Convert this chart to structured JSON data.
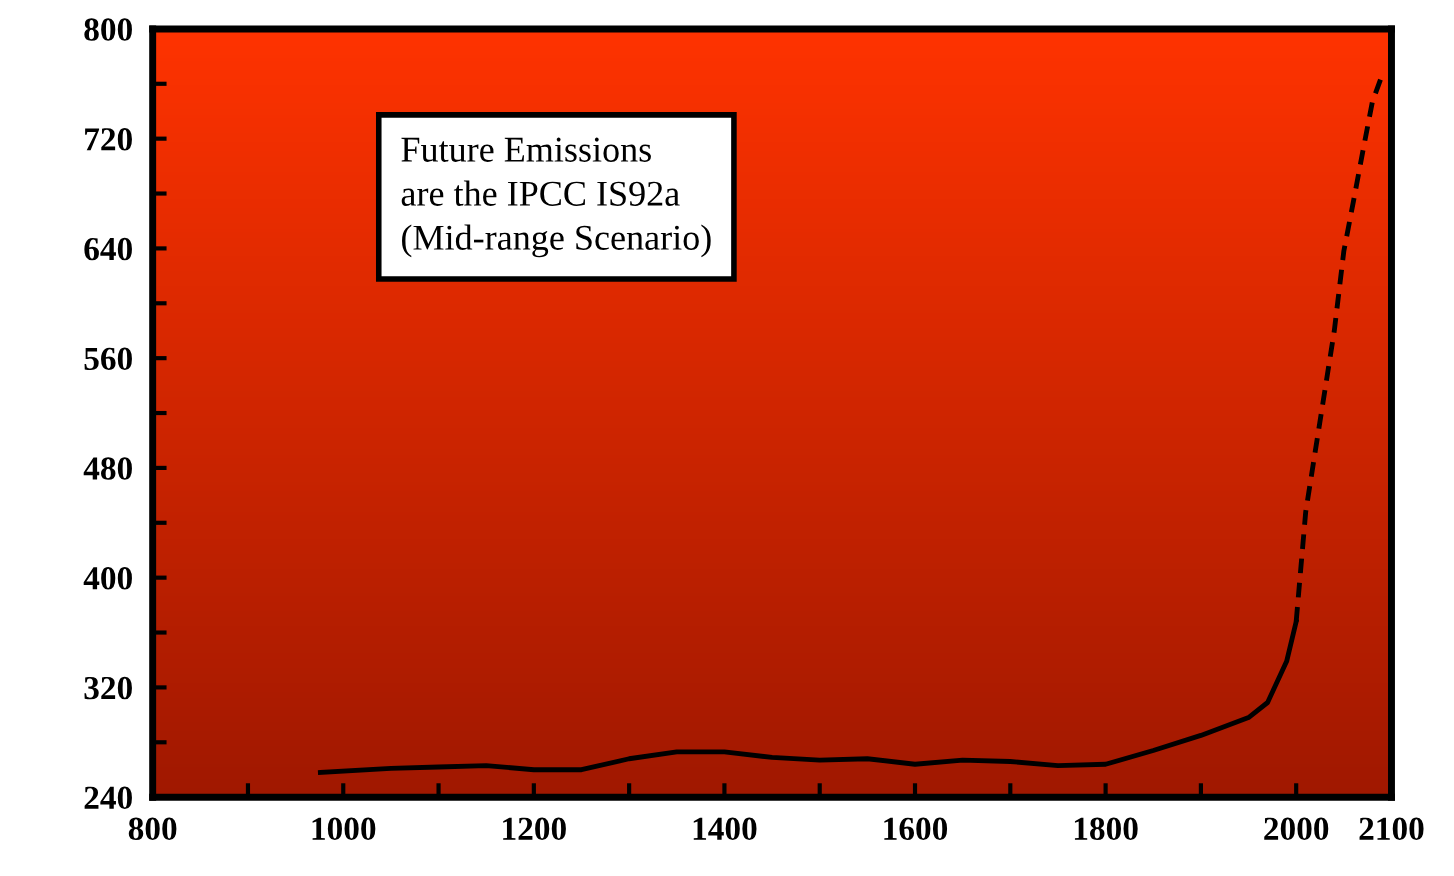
{
  "chart_data": {
    "type": "line",
    "annotations": [
      "Future Emissions\nare the IPCC IS92a\n(Mid-range Scenario)"
    ],
    "series": [
      {
        "color": "#000000",
        "line_style": "solid",
        "x": [
          976,
          1050,
          1100,
          1150,
          1200,
          1250,
          1300,
          1350,
          1400,
          1450,
          1500,
          1550,
          1600,
          1650,
          1700,
          1750,
          1800,
          1850,
          1900,
          1950,
          1970,
          1990,
          2000
        ],
        "values": [
          258,
          261,
          262,
          263,
          260,
          260,
          268,
          273,
          273,
          269,
          267,
          268,
          264,
          267,
          266,
          263,
          264,
          274,
          285,
          298,
          309,
          339,
          368
        ]
      },
      {
        "color": "#000000",
        "line_style": "dashed",
        "x": [
          2000,
          2010,
          2020,
          2030,
          2040,
          2050,
          2060,
          2070,
          2080,
          2090
        ],
        "values": [
          368,
          448,
          492,
          536,
          580,
          638,
          674,
          711,
          747,
          766
        ]
      }
    ],
    "xlim": [
      800,
      2100
    ],
    "xticks": [
      800,
      {
        "value": 900,
        "label": null
      },
      1000,
      {
        "value": 1100,
        "label": null
      },
      1200,
      {
        "value": 1300,
        "label": null
      },
      1400,
      {
        "value": 1500,
        "label": null
      },
      1600,
      {
        "value": 1700,
        "label": null
      },
      1800,
      {
        "value": 1900,
        "label": null
      },
      2000,
      2100
    ],
    "ylim": [
      240,
      800
    ],
    "yticks": [
      240,
      {
        "value": 280,
        "label": null
      },
      320,
      {
        "value": 360,
        "label": null
      },
      400,
      {
        "value": 440,
        "label": null
      },
      480,
      {
        "value": 520,
        "label": null
      },
      560,
      {
        "value": 600,
        "label": null
      },
      640,
      {
        "value": 680,
        "label": null
      },
      720,
      {
        "value": 760,
        "label": null
      },
      800
    ],
    "grid": false,
    "marker": "none"
  }
}
